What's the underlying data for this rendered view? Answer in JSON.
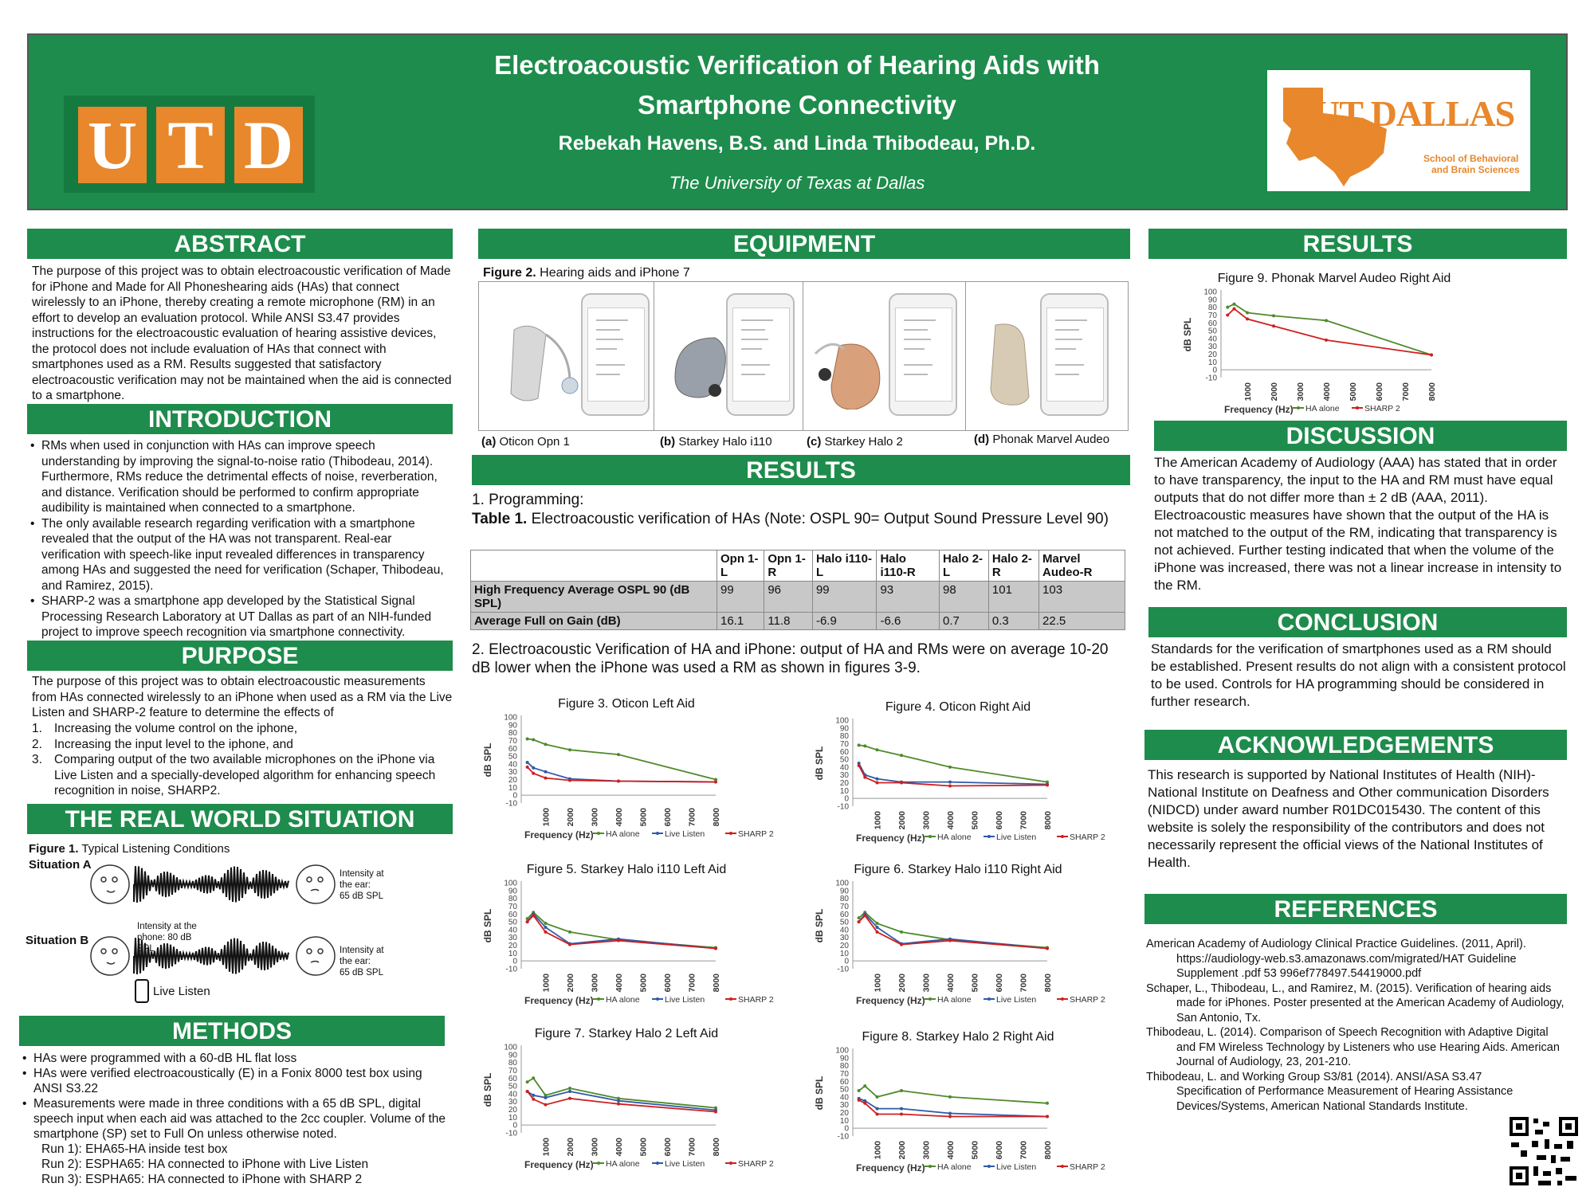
{
  "header": {
    "title_line1": "Electroacoustic Verification of Hearing Aids with",
    "title_line2": "Smartphone Connectivity",
    "authors": "Rebekah Havens, B.S. and Linda Thibodeau, Ph.D.",
    "institution": "The University of Texas at Dallas",
    "utd_letters": [
      "U",
      "T",
      "D"
    ],
    "logo_text": "UT DALLAS",
    "logo_sub1": "School of Behavioral",
    "logo_sub2": "and Brain Sciences",
    "colors": {
      "green": "#1e8c4c",
      "orange": "#e8872b"
    }
  },
  "abstract": {
    "heading": "ABSTRACT",
    "text": "The purpose of this project was to obtain electroacoustic verification of Made for iPhone and Made for All Phoneshearing aids (HAs) that connect wirelessly to an iPhone, thereby creating a remote microphone (RM) in an effort to develop an evaluation protocol. While ANSI S3.47 provides instructions for the electroacoustic evaluation of hearing assistive devices, the protocol does not include evaluation of HAs that connect with smartphones used as a RM. Results suggested that satisfactory electroacoustic verification may not be maintained when the aid is connected to a smartphone."
  },
  "introduction": {
    "heading": "INTRODUCTION",
    "bullets": [
      "RMs when used in conjunction with HAs can improve speech understanding by improving the signal-to-noise ratio (Thibodeau, 2014). Furthermore, RMs reduce the detrimental effects of noise, reverberation, and distance. Verification should be performed to confirm appropriate audibility is maintained when connected to a smartphone.",
      "The only available research regarding verification with a smartphone revealed that the output of the HA was not transparent. Real-ear verification with speech-like input revealed differences in transparency among HAs and suggested the need for verification (Schaper, Thibodeau, and Ramirez, 2015).",
      "SHARP-2 was a smartphone app developed by the Statistical Signal Processing Research Laboratory at UT Dallas as part of an NIH-funded project to improve speech recognition via smartphone connectivity."
    ]
  },
  "purpose": {
    "heading": "PURPOSE",
    "text": "The purpose of this project was to obtain electroacoustic measurements from HAs connected wirelessly to an iPhone when used as a RM via the Live Listen and SHARP-2 feature to determine the effects of",
    "items": [
      {
        "n": "1.",
        "t": "Increasing the volume control on the iphone,"
      },
      {
        "n": "2.",
        "t": "Increasing the input level to the iphone, and"
      },
      {
        "n": "3.",
        "t": "Comparing output of the two available microphones on the iPhone via Live Listen and a specially-developed algorithm for enhancing speech recognition in noise, SHARP2."
      }
    ]
  },
  "real_world": {
    "heading": "THE REAL WORLD SITUATION",
    "fig_label": "Figure 1.",
    "fig_caption": "Typical Listening Conditions",
    "situation_a": "Situation A",
    "situation_b": "Situation B",
    "a_intensity": [
      "Intensity at",
      "the ear:",
      "65 dB SPL"
    ],
    "b_phone": [
      "Intensity at the",
      "phone: 80 dB",
      "SPL"
    ],
    "b_intensity": [
      "Intensity at",
      "the ear:",
      "65 dB SPL"
    ],
    "live_listen": "Live Listen"
  },
  "methods": {
    "heading": "METHODS",
    "bullets": [
      "HAs were programmed with a 60-dB HL flat loss",
      "HAs were verified electroacoustically (E) in a Fonix 8000 test box using ANSI S3.22",
      "Measurements were made in three conditions with a 65 dB SPL, digital speech input when each aid was attached to the 2cc coupler. Volume of the smartphone (SP) set to Full On unless otherwise noted."
    ],
    "runs": [
      "Run 1): EHA65-HA inside test box",
      "Run 2): ESPHA65: HA connected to iPhone with Live Listen",
      "Run 3): ESPHA65: HA connected to iPhone with SHARP 2"
    ]
  },
  "equipment": {
    "heading": "EQUIPMENT",
    "fig_label": "Figure 2.",
    "fig_caption": "Hearing aids and iPhone  7",
    "captions": [
      {
        "tag": "(a)",
        "name": "Oticon Opn 1"
      },
      {
        "tag": "(b)",
        "name": "Starkey Halo i110"
      },
      {
        "tag": "(c)",
        "name": "Starkey Halo 2"
      },
      {
        "tag": "(d)",
        "name": "Phonak Marvel Audeo"
      }
    ]
  },
  "results_mid": {
    "heading": "RESULTS",
    "programming": "1.  Programming:",
    "table_label": "Table 1.",
    "table_caption": "Electroacoustic verification of HAs (Note: OSPL 90= Output Sound Pressure Level 90)",
    "table_headers": [
      "",
      "Opn 1-L",
      "Opn 1-R",
      "Halo i110- L",
      "Halo i110-R",
      "Halo 2-L",
      "Halo 2-R",
      "Marvel Audeo-R"
    ],
    "table_rows": [
      [
        "High Frequency Average OSPL 90 (dB SPL)",
        "99",
        "96",
        "99",
        "93",
        "98",
        "101",
        "103"
      ],
      [
        "Average Full on Gain (dB)",
        "16.1",
        "11.8",
        "-6.9",
        "-6.6",
        "0.7",
        "0.3",
        "22.5"
      ]
    ],
    "item2": "2. Electroacoustic Verification of HA and iPhone: output of HA and RMs were on average 10-20 dB lower when the iPhone was used a RM as shown in figures 3-9."
  },
  "chart_data": [
    {
      "type": "line",
      "title": "Figure 3. Oticon Left Aid",
      "xlabel": "Frequency (Hz)",
      "ylabel": "dB SPL",
      "x": [
        250,
        500,
        1000,
        2000,
        4000,
        8000
      ],
      "ylim": [
        -10,
        100
      ],
      "series": [
        {
          "name": "HA alone",
          "color": "#4f8a2b",
          "values": [
            72,
            71,
            65,
            58,
            52,
            20
          ]
        },
        {
          "name": "Live Listen",
          "color": "#2f5aa8",
          "values": [
            42,
            35,
            30,
            21,
            18,
            17
          ]
        },
        {
          "name": "SHARP 2",
          "color": "#d01f1f",
          "values": [
            36,
            28,
            22,
            19,
            18,
            17
          ]
        }
      ]
    },
    {
      "type": "line",
      "title": "Figure 4. Oticon Right Aid",
      "xlabel": "Frequency (Hz)",
      "ylabel": "dB SPL",
      "x": [
        250,
        500,
        1000,
        2000,
        4000,
        8000
      ],
      "ylim": [
        -10,
        100
      ],
      "series": [
        {
          "name": "HA alone",
          "color": "#4f8a2b",
          "values": [
            68,
            67,
            62,
            55,
            40,
            21
          ]
        },
        {
          "name": "Live Listen",
          "color": "#2f5aa8",
          "values": [
            45,
            30,
            25,
            21,
            21,
            18
          ]
        },
        {
          "name": "SHARP 2",
          "color": "#d01f1f",
          "values": [
            42,
            27,
            20,
            20,
            16,
            17
          ]
        }
      ]
    },
    {
      "type": "line",
      "title": "Figure 5. Starkey Halo i110 Left Aid",
      "xlabel": "Frequency (Hz)",
      "ylabel": "dB SPL",
      "x": [
        250,
        500,
        1000,
        2000,
        4000,
        8000
      ],
      "ylim": [
        -10,
        100
      ],
      "series": [
        {
          "name": "HA alone",
          "color": "#4f8a2b",
          "values": [
            54,
            62,
            48,
            37,
            27,
            17
          ]
        },
        {
          "name": "Live Listen",
          "color": "#2f5aa8",
          "values": [
            50,
            60,
            43,
            22,
            28,
            16
          ]
        },
        {
          "name": "SHARP 2",
          "color": "#d01f1f",
          "values": [
            50,
            58,
            37,
            21,
            26,
            16
          ]
        }
      ]
    },
    {
      "type": "line",
      "title": "Figure 6. Starkey Halo i110 Right Aid",
      "xlabel": "Frequency (Hz)",
      "ylabel": "dB SPL",
      "x": [
        250,
        500,
        1000,
        2000,
        4000,
        8000
      ],
      "ylim": [
        -10,
        100
      ],
      "series": [
        {
          "name": "HA alone",
          "color": "#4f8a2b",
          "values": [
            55,
            62,
            48,
            37,
            27,
            17
          ]
        },
        {
          "name": "Live Listen",
          "color": "#2f5aa8",
          "values": [
            50,
            60,
            43,
            22,
            28,
            16
          ]
        },
        {
          "name": "SHARP 2",
          "color": "#d01f1f",
          "values": [
            50,
            58,
            37,
            21,
            26,
            16
          ]
        }
      ]
    },
    {
      "type": "line",
      "title": "Figure 7. Starkey Halo 2 Left Aid",
      "xlabel": "Frequency (Hz)",
      "ylabel": "dB SPL",
      "x": [
        250,
        500,
        1000,
        2000,
        4000,
        8000
      ],
      "ylim": [
        -10,
        100
      ],
      "series": [
        {
          "name": "HA alone",
          "color": "#4f8a2b",
          "values": [
            55,
            60,
            38,
            47,
            34,
            22
          ]
        },
        {
          "name": "Live Listen",
          "color": "#2f5aa8",
          "values": [
            43,
            38,
            35,
            43,
            31,
            19
          ]
        },
        {
          "name": "SHARP 2",
          "color": "#d01f1f",
          "values": [
            43,
            33,
            26,
            34,
            27,
            17
          ]
        }
      ]
    },
    {
      "type": "line",
      "title": "Figure 8. Starkey Halo 2 Right Aid",
      "xlabel": "Frequency (Hz)",
      "ylabel": "dB SPL",
      "x": [
        250,
        500,
        1000,
        2000,
        4000,
        8000
      ],
      "ylim": [
        -10,
        100
      ],
      "series": [
        {
          "name": "HA alone",
          "color": "#4f8a2b",
          "values": [
            48,
            54,
            40,
            48,
            40,
            32
          ]
        },
        {
          "name": "Live Listen",
          "color": "#2f5aa8",
          "values": [
            38,
            35,
            25,
            25,
            19,
            15
          ]
        },
        {
          "name": "SHARP 2",
          "color": "#d01f1f",
          "values": [
            36,
            32,
            18,
            18,
            15,
            15
          ]
        }
      ]
    },
    {
      "type": "line",
      "title": "Figure 9. Phonak Marvel Audeo Right Aid",
      "xlabel": "Frequency (Hz)",
      "ylabel": "dB SPL",
      "x": [
        250,
        500,
        1000,
        2000,
        4000,
        8000
      ],
      "ylim": [
        -10,
        100
      ],
      "series": [
        {
          "name": "HA alone",
          "color": "#4f8a2b",
          "values": [
            80,
            84,
            73,
            69,
            63,
            19
          ]
        },
        {
          "name": "SHARP 2",
          "color": "#d01f1f",
          "values": [
            70,
            78,
            65,
            56,
            38,
            19
          ]
        }
      ]
    }
  ],
  "chart_axis": {
    "yticks": [
      "100",
      "90",
      "80",
      "70",
      "60",
      "50",
      "40",
      "30",
      "20",
      "10",
      "0",
      "-10"
    ],
    "xticks": [
      "1000",
      "2000",
      "3000",
      "4000",
      "5000",
      "6000",
      "7000",
      "8000"
    ]
  },
  "results_right": {
    "heading": "RESULTS"
  },
  "discussion": {
    "heading": "DISCUSSION",
    "text": "The American Academy of Audiology (AAA) has stated that in order to have transparency, the input to the HA and RM must have equal outputs that do not differ more than ± 2 dB (AAA, 2011). Electroacoustic measures have shown that the output of the HA is not matched to the output of the RM, indicating that transparency is not achieved. Further testing indicated that when the volume of the iPhone was increased, there was not a linear increase in intensity to the RM."
  },
  "conclusion": {
    "heading": "CONCLUSION",
    "text": "Standards for the verification of smartphones used as a RM should be established. Present results do not align with a consistent protocol to be used. Controls for HA programming should be considered in further research."
  },
  "acknowledgements": {
    "heading": "ACKNOWLEDGEMENTS",
    "text": "This research is supported by National Institutes of Health (NIH)- National Institute on Deafness and Other communication Disorders (NIDCD) under award number R01DC015430. The content of this website is solely the responsibility of the contributors and does not necessarily represent the official views of the National Institutes of Health."
  },
  "references": {
    "heading": "REFERENCES",
    "items": [
      "American Academy of Audiology Clinical Practice Guidelines. (2011, April). https://audiology-web.s3.amazonaws.com/migrated/HAT Guideline Supplement .pdf 53 996ef778497.54419000.pdf",
      "Schaper, L., Thibodeau, L., and Ramirez, M. (2015). Verification of hearing aids made for iPhones. Poster presented at the American Academy of Audiology, San Antonio, Tx.",
      "Thibodeau, L. (2014). Comparison of Speech Recognition with Adaptive Digital and FM Wireless Technology by Listeners who use Hearing Aids. American Journal of Audiology, 23, 201-210.",
      "Thibodeau, L. and Working Group S3/81 (2014). ANSI/ASA S3.47 Specification of Performance Measurement of Hearing Assistance Devices/Systems, American National Standards Institute."
    ]
  }
}
